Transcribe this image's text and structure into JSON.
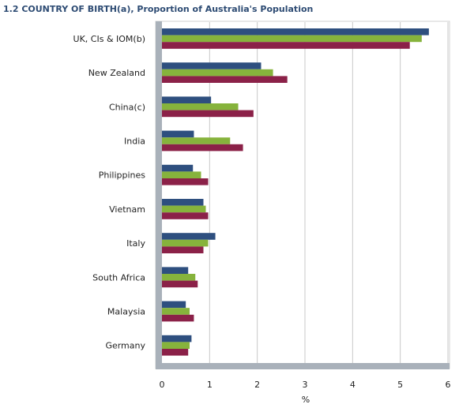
{
  "chart_data": {
    "type": "bar",
    "orientation": "horizontal",
    "title": "1.2 COUNTRY OF BIRTH(a), Proportion of Australia's Population",
    "xlabel": "%",
    "ylabel": "",
    "xlim": [
      0,
      6
    ],
    "xticks": [
      "0",
      "1",
      "2",
      "3",
      "4",
      "5",
      "6"
    ],
    "grid": true,
    "legend": "none",
    "categories": [
      "UK, CIs & IOM(b)",
      "New Zealand",
      "China(c)",
      "India",
      "Philippines",
      "Vietnam",
      "Italy",
      "South Africa",
      "Malaysia",
      "Germany"
    ],
    "series": [
      {
        "color": "#2e4f7f",
        "values": [
          5.6,
          2.08,
          1.03,
          0.67,
          0.65,
          0.87,
          1.12,
          0.55,
          0.5,
          0.62
        ]
      },
      {
        "color": "#86b33c",
        "values": [
          5.45,
          2.33,
          1.6,
          1.43,
          0.82,
          0.92,
          0.97,
          0.7,
          0.58,
          0.58
        ]
      },
      {
        "color": "#8b2148",
        "values": [
          5.2,
          2.63,
          1.92,
          1.7,
          0.97,
          0.97,
          0.87,
          0.75,
          0.67,
          0.55
        ]
      }
    ],
    "colors": {
      "plot_background": "#ffffff",
      "wall": "#a9b1ba",
      "grid": "#c8c8c8"
    }
  }
}
